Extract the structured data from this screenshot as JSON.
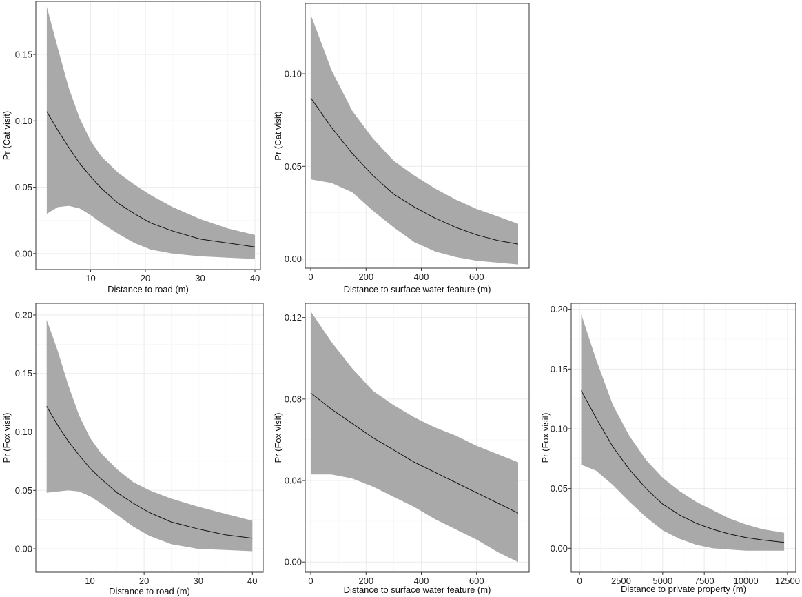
{
  "colors": {
    "ribbon": "#a9a9a9",
    "line": "#111111",
    "border": "#333333",
    "grid": "#ebebeb"
  },
  "chart_data": [
    {
      "id": "cat-road",
      "type": "line",
      "xlabel": "Distance to road (m)",
      "ylabel": "Pr (Cat visit)",
      "xlim": [
        0,
        41
      ],
      "ylim": [
        -0.012,
        0.19
      ],
      "xticks": [
        10,
        20,
        30,
        40
      ],
      "yticks": [
        0.0,
        0.05,
        0.1,
        0.15
      ],
      "ytick_labels": [
        "0.00",
        "0.05",
        "0.10",
        "0.15"
      ],
      "series": [
        {
          "x": [
            2,
            4,
            6,
            8,
            10,
            12,
            15,
            18,
            21,
            25,
            30,
            35,
            40
          ],
          "y": [
            0.107,
            0.093,
            0.08,
            0.068,
            0.058,
            0.049,
            0.038,
            0.03,
            0.023,
            0.017,
            0.011,
            0.008,
            0.005
          ],
          "lower": [
            0.03,
            0.035,
            0.036,
            0.034,
            0.029,
            0.023,
            0.015,
            0.008,
            0.003,
            0.0,
            -0.002,
            -0.003,
            -0.004
          ],
          "upper": [
            0.186,
            0.155,
            0.125,
            0.102,
            0.085,
            0.073,
            0.061,
            0.052,
            0.044,
            0.035,
            0.026,
            0.019,
            0.014
          ]
        }
      ]
    },
    {
      "id": "cat-water",
      "type": "line",
      "xlabel": "Distance to surface water feature (m)",
      "ylabel": "Pr (Cat visit)",
      "xlim": [
        -20,
        790
      ],
      "ylim": [
        -0.005,
        0.138
      ],
      "xticks": [
        0,
        200,
        400,
        600
      ],
      "yticks": [
        0.0,
        0.05,
        0.1
      ],
      "ytick_labels": [
        "0.00",
        "0.05",
        "0.10"
      ],
      "series": [
        {
          "x": [
            0,
            75,
            150,
            225,
            300,
            375,
            450,
            525,
            600,
            675,
            750
          ],
          "y": [
            0.087,
            0.071,
            0.057,
            0.045,
            0.035,
            0.028,
            0.022,
            0.017,
            0.013,
            0.01,
            0.008
          ],
          "lower": [
            0.043,
            0.041,
            0.036,
            0.026,
            0.017,
            0.009,
            0.004,
            0.001,
            -0.001,
            -0.002,
            -0.003
          ],
          "upper": [
            0.132,
            0.102,
            0.08,
            0.065,
            0.053,
            0.045,
            0.038,
            0.032,
            0.027,
            0.023,
            0.019
          ]
        }
      ]
    },
    {
      "id": "fox-road",
      "type": "line",
      "xlabel": "Distance to road (m)",
      "ylabel": "Pr (Fox visit)",
      "xlim": [
        0,
        42
      ],
      "ylim": [
        -0.02,
        0.21
      ],
      "xticks": [
        10,
        20,
        30,
        40
      ],
      "yticks": [
        0.0,
        0.05,
        0.1,
        0.15,
        0.2
      ],
      "ytick_labels": [
        "0.00",
        "0.05",
        "0.10",
        "0.15",
        "0.20"
      ],
      "series": [
        {
          "x": [
            2,
            4,
            6,
            8,
            10,
            12,
            15,
            18,
            21,
            25,
            30,
            35,
            40
          ],
          "y": [
            0.122,
            0.106,
            0.092,
            0.08,
            0.069,
            0.06,
            0.048,
            0.039,
            0.031,
            0.023,
            0.017,
            0.012,
            0.009
          ],
          "lower": [
            0.048,
            0.049,
            0.05,
            0.049,
            0.045,
            0.039,
            0.029,
            0.019,
            0.011,
            0.004,
            0.0,
            -0.001,
            -0.002
          ],
          "upper": [
            0.196,
            0.17,
            0.14,
            0.114,
            0.095,
            0.082,
            0.068,
            0.057,
            0.05,
            0.043,
            0.036,
            0.03,
            0.024
          ]
        }
      ]
    },
    {
      "id": "fox-water",
      "type": "line",
      "xlabel": "Distance to surface water feature (m)",
      "ylabel": "Pr (Fox visit)",
      "xlim": [
        -20,
        790
      ],
      "ylim": [
        -0.005,
        0.127
      ],
      "xticks": [
        0,
        200,
        400,
        600
      ],
      "yticks": [
        0.0,
        0.04,
        0.08,
        0.12
      ],
      "ytick_labels": [
        "0.00",
        "0.04",
        "0.08",
        "0.12"
      ],
      "series": [
        {
          "x": [
            0,
            75,
            150,
            225,
            300,
            375,
            450,
            525,
            600,
            675,
            750
          ],
          "y": [
            0.083,
            0.075,
            0.068,
            0.061,
            0.055,
            0.049,
            0.044,
            0.039,
            0.034,
            0.029,
            0.024
          ],
          "lower": [
            0.043,
            0.043,
            0.041,
            0.037,
            0.032,
            0.027,
            0.021,
            0.016,
            0.011,
            0.005,
            0.0
          ],
          "upper": [
            0.123,
            0.108,
            0.095,
            0.084,
            0.077,
            0.071,
            0.066,
            0.062,
            0.057,
            0.053,
            0.049
          ]
        }
      ]
    },
    {
      "id": "fox-property",
      "type": "line",
      "xlabel": "Distance to private property (m)",
      "ylabel": "Pr (Fox visit)",
      "xlim": [
        -500,
        13000
      ],
      "ylim": [
        -0.02,
        0.205
      ],
      "xticks": [
        0,
        2500,
        5000,
        7500,
        10000,
        12500
      ],
      "yticks": [
        0.0,
        0.05,
        0.1,
        0.15,
        0.2
      ],
      "ytick_labels": [
        "0.00",
        "0.05",
        "0.10",
        "0.15",
        "0.20"
      ],
      "series": [
        {
          "x": [
            100,
            1000,
            2000,
            3000,
            4000,
            5000,
            6000,
            7000,
            8000,
            9000,
            10000,
            11000,
            12300
          ],
          "y": [
            0.132,
            0.109,
            0.085,
            0.066,
            0.05,
            0.037,
            0.028,
            0.021,
            0.016,
            0.012,
            0.009,
            0.007,
            0.005
          ],
          "lower": [
            0.07,
            0.065,
            0.053,
            0.039,
            0.026,
            0.015,
            0.008,
            0.003,
            0.0,
            -0.001,
            -0.002,
            -0.002,
            -0.002
          ],
          "upper": [
            0.196,
            0.158,
            0.12,
            0.094,
            0.074,
            0.059,
            0.048,
            0.039,
            0.032,
            0.025,
            0.02,
            0.016,
            0.013
          ]
        }
      ]
    }
  ]
}
